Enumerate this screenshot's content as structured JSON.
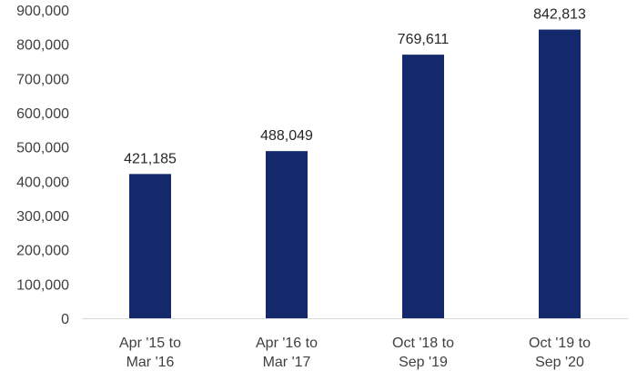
{
  "chart_data": {
    "type": "bar",
    "categories": [
      [
        "Apr '15 to",
        "Mar '16"
      ],
      [
        "Apr '16 to",
        "Mar '17"
      ],
      [
        "Oct '18 to",
        "Sep '19"
      ],
      [
        "Oct '19 to",
        "Sep '20"
      ]
    ],
    "values": [
      421185,
      488049,
      769611,
      842813
    ],
    "data_labels": [
      "421,185",
      "488,049",
      "769,611",
      "842,813"
    ],
    "yticks": [
      0,
      100000,
      200000,
      300000,
      400000,
      500000,
      600000,
      700000,
      800000,
      900000
    ],
    "ytick_labels": [
      "0",
      "100,000",
      "200,000",
      "300,000",
      "400,000",
      "500,000",
      "600,000",
      "700,000",
      "800,000",
      "900,000"
    ],
    "ylim": [
      0,
      900000
    ],
    "title": "",
    "xlabel": "",
    "ylabel": "",
    "grid": false,
    "legend": "none",
    "bar_color": "#13296b",
    "axis_color": "#d9d9d9"
  }
}
